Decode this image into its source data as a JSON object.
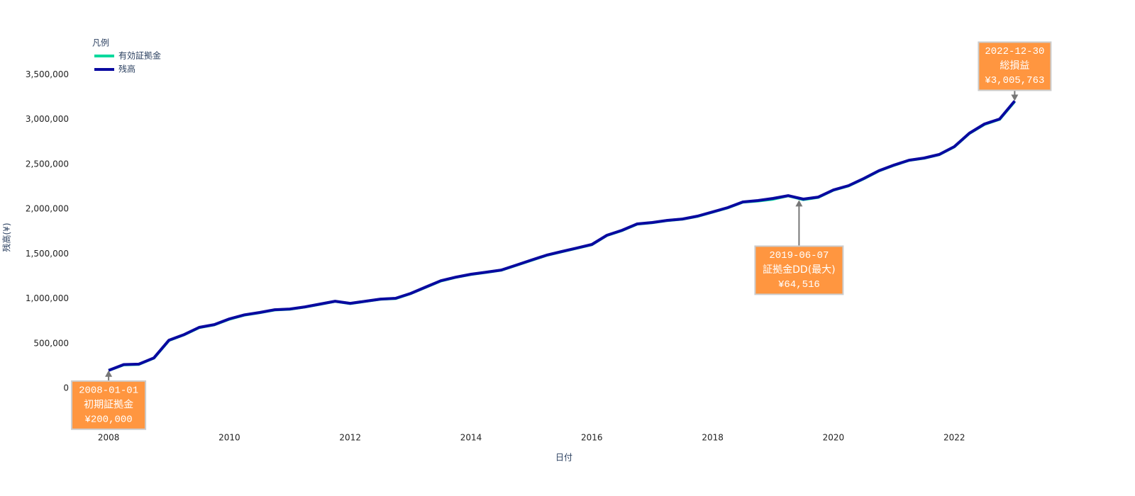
{
  "chart_data": {
    "type": "line",
    "x_label": "日付",
    "y_label": "残高(¥)",
    "legend_title": "凡例",
    "legend": "top-left",
    "x": [
      2008.0,
      2008.25,
      2008.5,
      2008.75,
      2009.0,
      2009.25,
      2009.5,
      2009.75,
      2010.0,
      2010.25,
      2010.5,
      2010.75,
      2011.0,
      2011.25,
      2011.5,
      2011.75,
      2012.0,
      2012.25,
      2012.5,
      2012.75,
      2013.0,
      2013.25,
      2013.5,
      2013.75,
      2014.0,
      2014.25,
      2014.5,
      2014.75,
      2015.0,
      2015.25,
      2015.5,
      2015.75,
      2016.0,
      2016.25,
      2016.5,
      2016.75,
      2017.0,
      2017.25,
      2017.5,
      2017.75,
      2018.0,
      2018.25,
      2018.5,
      2018.75,
      2019.0,
      2019.25,
      2019.5,
      2019.75,
      2020.0,
      2020.25,
      2020.5,
      2020.75,
      2021.0,
      2021.25,
      2021.5,
      2021.75,
      2022.0,
      2022.25,
      2022.5,
      2022.75,
      2023.0
    ],
    "series": [
      {
        "name": "有効証拠金",
        "color": "#00d99c",
        "values": [
          200000,
          262000,
          268000,
          338000,
          535000,
          598000,
          678000,
          709000,
          772000,
          818000,
          844000,
          875000,
          883000,
          907000,
          938000,
          970000,
          946000,
          970000,
          994000,
          1002000,
          1057000,
          1128000,
          1198000,
          1239000,
          1271000,
          1294000,
          1318000,
          1373000,
          1429000,
          1484000,
          1524000,
          1563000,
          1603000,
          1706000,
          1761000,
          1832000,
          1848000,
          1872000,
          1887000,
          1919000,
          1966000,
          2014000,
          2077000,
          2090000,
          2110000,
          2148000,
          2105000,
          2131000,
          2211000,
          2259000,
          2338000,
          2425000,
          2488000,
          2543000,
          2567000,
          2607000,
          2694000,
          2844000,
          2945000,
          3001000,
          3200000
        ]
      },
      {
        "name": "残高",
        "color": "#0a0aa0",
        "values": [
          200000,
          265000,
          270000,
          340000,
          537000,
          600000,
          680000,
          711000,
          775000,
          820000,
          846000,
          877000,
          885000,
          909000,
          940000,
          972000,
          948000,
          972000,
          996000,
          1004000,
          1059000,
          1130000,
          1200000,
          1241000,
          1273000,
          1296000,
          1320000,
          1375000,
          1431000,
          1486000,
          1526000,
          1565000,
          1605000,
          1708000,
          1763000,
          1834000,
          1850000,
          1874000,
          1889000,
          1921000,
          1968000,
          2016000,
          2079000,
          2095000,
          2119000,
          2150000,
          2111000,
          2134000,
          2213000,
          2261000,
          2340000,
          2427000,
          2490000,
          2545000,
          2569000,
          2609000,
          2696000,
          2846000,
          2949000,
          3004000,
          3205763
        ]
      }
    ],
    "xlim": [
      2007.4,
      2023.7
    ],
    "ylim": [
      -450000,
      4000000
    ],
    "xticks": [
      2008,
      2010,
      2012,
      2014,
      2016,
      2018,
      2020,
      2022
    ],
    "yticks": [
      0,
      {
        "value": 500000,
        "label": "500,000"
      },
      {
        "value": 1000000,
        "label": "1,000,000"
      },
      {
        "value": 1500000,
        "label": "1,500,000"
      },
      {
        "value": 2000000,
        "label": "2,000,000"
      },
      {
        "value": 2500000,
        "label": "2,500,000"
      },
      {
        "value": 3000000,
        "label": "3,000,000"
      },
      {
        "value": 3500000,
        "label": "3,500,000"
      }
    ],
    "grid": false,
    "annotations": [
      {
        "x": 2008.0,
        "y": 200000,
        "lines": [
          "2008-01-01",
          "初期証拠金",
          "¥200,000"
        ]
      },
      {
        "x": 2019.43,
        "y": 2100000,
        "lines": [
          "2019-06-07",
          "証拠金DD(最大)",
          "¥64,516"
        ]
      },
      {
        "x": 2023.0,
        "y": 3205763,
        "lines": [
          "2022-12-30",
          "総損益",
          "¥3,005,763"
        ]
      }
    ]
  }
}
